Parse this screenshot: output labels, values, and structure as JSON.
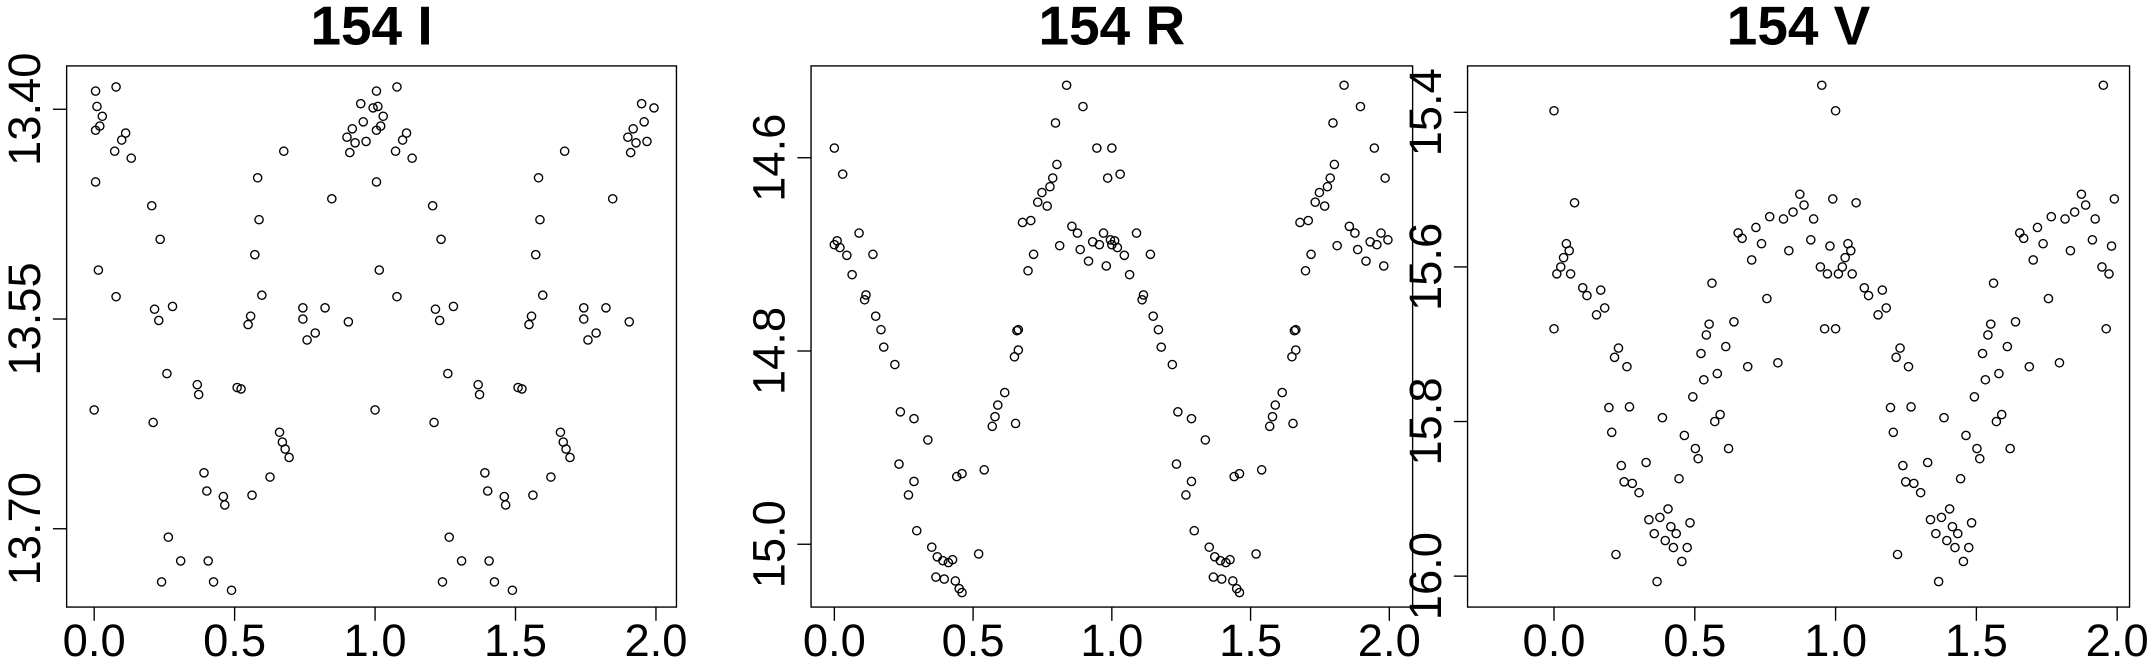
{
  "chart_data": [
    {
      "type": "scatter",
      "title": "154 I",
      "color": "#000000",
      "y_reversed": true,
      "xlim": [
        -0.098,
        2.073
      ],
      "ylim": [
        13.369,
        13.756
      ],
      "xticks": [
        {
          "value": 0,
          "label": "0.0"
        },
        0.5,
        {
          "value": 1,
          "label": "1.0"
        },
        1.5,
        {
          "value": 2,
          "label": "2.0"
        }
      ],
      "yticks": [
        {
          "value": 13.4,
          "label": "13.40"
        },
        13.55,
        {
          "value": 13.7,
          "label": "13.70"
        }
      ],
      "x": [
        0.005,
        0.01,
        0.005,
        0.02,
        0.029,
        0.005,
        0.015,
        0,
        0.078,
        0.073,
        0.098,
        0.112,
        0.132,
        0.078,
        0.205,
        0.215,
        0.23,
        0.235,
        0.279,
        0.259,
        0.21,
        0.264,
        0.24,
        0.308,
        0.367,
        0.372,
        0.391,
        0.401,
        0.406,
        0.425,
        0.46,
        0.465,
        0.489,
        0.509,
        0.523,
        0.548,
        0.557,
        0.562,
        0.572,
        0.582,
        0.587,
        0.597,
        0.626,
        0.66,
        0.67,
        0.68,
        0.694,
        0.675,
        0.743,
        0.743,
        0.758,
        0.787,
        0.822,
        0.846,
        0.905,
        0.9,
        0.91,
        0.919,
        0.929,
        0.949,
        0.958,
        0.968,
        0.993,
        1.005,
        1.01,
        1.005,
        1.02,
        1.029,
        1.005,
        1.015,
        1,
        1.078,
        1.073,
        1.098,
        1.112,
        1.132,
        1.078,
        1.205,
        1.215,
        1.23,
        1.235,
        1.279,
        1.259,
        1.21,
        1.264,
        1.24,
        1.308,
        1.367,
        1.372,
        1.391,
        1.401,
        1.406,
        1.425,
        1.46,
        1.465,
        1.489,
        1.509,
        1.523,
        1.548,
        1.557,
        1.562,
        1.572,
        1.582,
        1.587,
        1.597,
        1.626,
        1.66,
        1.67,
        1.68,
        1.694,
        1.675,
        1.743,
        1.743,
        1.758,
        1.787,
        1.822,
        1.846,
        1.905,
        1.9,
        1.91,
        1.919,
        1.929,
        1.949,
        1.958,
        1.968,
        1.993
      ],
      "y": [
        13.387,
        13.398,
        13.415,
        13.412,
        13.405,
        13.452,
        13.515,
        13.615,
        13.384,
        13.43,
        13.422,
        13.417,
        13.435,
        13.534,
        13.469,
        13.543,
        13.551,
        13.493,
        13.541,
        13.589,
        13.624,
        13.706,
        13.738,
        13.723,
        13.597,
        13.604,
        13.66,
        13.673,
        13.723,
        13.738,
        13.677,
        13.683,
        13.744,
        13.599,
        13.6,
        13.554,
        13.548,
        13.676,
        13.504,
        13.449,
        13.479,
        13.533,
        13.663,
        13.631,
        13.638,
        13.643,
        13.649,
        13.43,
        13.542,
        13.55,
        13.565,
        13.56,
        13.542,
        13.464,
        13.552,
        13.42,
        13.431,
        13.414,
        13.424,
        13.396,
        13.409,
        13.423,
        13.399,
        13.387,
        13.398,
        13.415,
        13.412,
        13.405,
        13.452,
        13.515,
        13.615,
        13.384,
        13.43,
        13.422,
        13.417,
        13.435,
        13.534,
        13.469,
        13.543,
        13.551,
        13.493,
        13.541,
        13.589,
        13.624,
        13.706,
        13.738,
        13.723,
        13.597,
        13.604,
        13.66,
        13.673,
        13.723,
        13.738,
        13.677,
        13.683,
        13.744,
        13.599,
        13.6,
        13.554,
        13.548,
        13.676,
        13.504,
        13.449,
        13.479,
        13.533,
        13.663,
        13.631,
        13.638,
        13.643,
        13.649,
        13.43,
        13.542,
        13.55,
        13.565,
        13.56,
        13.542,
        13.464,
        13.552,
        13.42,
        13.431,
        13.414,
        13.424,
        13.396,
        13.409,
        13.423,
        13.399
      ]
    },
    {
      "type": "scatter",
      "title": "154 R",
      "color": "#000000",
      "y_reversed": true,
      "xlim": [
        -0.084,
        2.084
      ],
      "ylim": [
        14.505,
        15.065
      ],
      "xticks": [
        {
          "value": 0,
          "label": "0.0"
        },
        0.5,
        {
          "value": 1,
          "label": "1.0"
        },
        1.5,
        {
          "value": 2,
          "label": "2.0"
        }
      ],
      "yticks": [
        14.6,
        14.8,
        {
          "value": 15,
          "label": "15.0"
        }
      ],
      "x": [
        0,
        0,
        0.01,
        0.02,
        0.03,
        0.045,
        0.064,
        0.089,
        0.109,
        0.114,
        0.139,
        0.149,
        0.168,
        0.178,
        0.218,
        0.238,
        0.233,
        0.287,
        0.267,
        0.287,
        0.297,
        0.337,
        0.351,
        0.366,
        0.371,
        0.391,
        0.396,
        0.411,
        0.426,
        0.436,
        0.45,
        0.46,
        0.441,
        0.46,
        0.52,
        0.54,
        0.569,
        0.579,
        0.589,
        0.614,
        0.649,
        0.653,
        0.663,
        0.658,
        0.663,
        0.678,
        0.698,
        0.708,
        0.718,
        0.733,
        0.748,
        0.767,
        0.777,
        0.787,
        0.797,
        0.802,
        0.812,
        0.837,
        0.856,
        0.876,
        0.896,
        0.886,
        0.916,
        0.931,
        0.946,
        0.955,
        0.97,
        0.985,
        0.98,
        0.995,
        1,
        1,
        1.01,
        1.02,
        1.03,
        1.045,
        1.064,
        1.089,
        1.109,
        1.114,
        1.139,
        1.149,
        1.168,
        1.178,
        1.218,
        1.238,
        1.233,
        1.287,
        1.267,
        1.287,
        1.297,
        1.337,
        1.351,
        1.366,
        1.371,
        1.391,
        1.396,
        1.411,
        1.426,
        1.436,
        1.45,
        1.46,
        1.441,
        1.46,
        1.52,
        1.54,
        1.569,
        1.579,
        1.589,
        1.614,
        1.649,
        1.653,
        1.663,
        1.658,
        1.663,
        1.678,
        1.698,
        1.708,
        1.718,
        1.733,
        1.748,
        1.767,
        1.777,
        1.787,
        1.797,
        1.802,
        1.812,
        1.837,
        1.856,
        1.876,
        1.896,
        1.886,
        1.916,
        1.931,
        1.946,
        1.955,
        1.97,
        1.985,
        1.98,
        1.995
      ],
      "y": [
        14.59,
        14.69,
        14.686,
        14.693,
        14.617,
        14.701,
        14.721,
        14.678,
        14.747,
        14.742,
        14.7,
        14.764,
        14.778,
        14.796,
        14.814,
        14.863,
        14.917,
        14.87,
        14.949,
        14.935,
        14.986,
        14.892,
        15.003,
        15.034,
        15.013,
        15.017,
        15.036,
        15.019,
        15.016,
        15.038,
        15.046,
        15.05,
        14.93,
        14.927,
        15.01,
        14.923,
        14.878,
        14.868,
        14.856,
        14.843,
        14.806,
        14.875,
        14.799,
        14.779,
        14.778,
        14.667,
        14.717,
        14.665,
        14.7,
        14.646,
        14.636,
        14.65,
        14.63,
        14.621,
        14.564,
        14.607,
        14.691,
        14.525,
        14.671,
        14.678,
        14.547,
        14.695,
        14.707,
        14.687,
        14.59,
        14.69,
        14.678,
        14.621,
        14.712,
        14.685,
        14.59,
        14.69,
        14.686,
        14.693,
        14.617,
        14.701,
        14.721,
        14.678,
        14.747,
        14.742,
        14.7,
        14.764,
        14.778,
        14.796,
        14.814,
        14.863,
        14.917,
        14.87,
        14.949,
        14.935,
        14.986,
        14.892,
        15.003,
        15.034,
        15.013,
        15.017,
        15.036,
        15.019,
        15.016,
        15.038,
        15.046,
        15.05,
        14.93,
        14.927,
        15.01,
        14.923,
        14.878,
        14.868,
        14.856,
        14.843,
        14.806,
        14.875,
        14.799,
        14.779,
        14.778,
        14.667,
        14.717,
        14.665,
        14.7,
        14.646,
        14.636,
        14.65,
        14.63,
        14.621,
        14.564,
        14.607,
        14.691,
        14.525,
        14.671,
        14.678,
        14.547,
        14.695,
        14.707,
        14.687,
        14.59,
        14.69,
        14.678,
        14.621,
        14.712,
        14.685
      ]
    },
    {
      "type": "scatter",
      "title": "154 V",
      "color": "#000000",
      "y_reversed": true,
      "xlim": [
        -0.307,
        2.044
      ],
      "ylim": [
        15.34,
        16.04
      ],
      "xticks": [
        {
          "value": 0,
          "label": "0.0"
        },
        0.5,
        {
          "value": 1,
          "label": "1.0"
        },
        1.5,
        {
          "value": 2,
          "label": "2.0"
        }
      ],
      "yticks": [
        15.4,
        15.6,
        15.8,
        {
          "value": 16,
          "label": "16.0"
        }
      ],
      "x": [
        0,
        0,
        0.01,
        0.024,
        0.034,
        0.044,
        0.054,
        0.059,
        0.073,
        0.102,
        0.117,
        0.151,
        0.166,
        0.18,
        0.195,
        0.205,
        0.215,
        0.22,
        0.229,
        0.239,
        0.249,
        0.259,
        0.268,
        0.278,
        0.302,
        0.327,
        0.337,
        0.356,
        0.366,
        0.376,
        0.385,
        0.395,
        0.405,
        0.415,
        0.424,
        0.434,
        0.444,
        0.454,
        0.463,
        0.473,
        0.483,
        0.493,
        0.502,
        0.512,
        0.522,
        0.532,
        0.541,
        0.551,
        0.561,
        0.571,
        0.58,
        0.59,
        0.61,
        0.62,
        0.639,
        0.654,
        0.668,
        0.688,
        0.702,
        0.717,
        0.737,
        0.756,
        0.766,
        0.795,
        0.815,
        0.834,
        0.849,
        0.873,
        0.888,
        0.912,
        0.922,
        0.951,
        0.946,
        0.961,
        0.971,
        0.98,
        0.99,
        1,
        1,
        1.01,
        1.024,
        1.034,
        1.044,
        1.054,
        1.059,
        1.073,
        1.102,
        1.117,
        1.151,
        1.166,
        1.18,
        1.195,
        1.205,
        1.215,
        1.22,
        1.229,
        1.239,
        1.249,
        1.259,
        1.268,
        1.278,
        1.302,
        1.327,
        1.337,
        1.356,
        1.366,
        1.376,
        1.385,
        1.395,
        1.405,
        1.415,
        1.424,
        1.434,
        1.444,
        1.454,
        1.463,
        1.473,
        1.483,
        1.493,
        1.502,
        1.512,
        1.522,
        1.532,
        1.541,
        1.551,
        1.561,
        1.571,
        1.58,
        1.59,
        1.61,
        1.62,
        1.639,
        1.654,
        1.668,
        1.688,
        1.702,
        1.717,
        1.737,
        1.756,
        1.766,
        1.795,
        1.815,
        1.834,
        1.849,
        1.873,
        1.888,
        1.912,
        1.922,
        1.951,
        1.946,
        1.961,
        1.971,
        1.98,
        1.99
      ],
      "y": [
        15.398,
        15.68,
        15.609,
        15.6,
        15.588,
        15.57,
        15.579,
        15.609,
        15.517,
        15.627,
        15.637,
        15.662,
        15.63,
        15.653,
        15.782,
        15.814,
        15.717,
        15.972,
        15.705,
        15.857,
        15.878,
        15.729,
        15.781,
        15.88,
        15.892,
        15.853,
        15.927,
        15.945,
        16.007,
        15.924,
        15.795,
        15.954,
        15.913,
        15.936,
        15.963,
        15.945,
        15.874,
        15.981,
        15.818,
        15.963,
        15.931,
        15.768,
        15.835,
        15.848,
        15.712,
        15.746,
        15.688,
        15.674,
        15.621,
        15.8,
        15.738,
        15.791,
        15.703,
        15.835,
        15.671,
        15.556,
        15.563,
        15.729,
        15.591,
        15.549,
        15.57,
        15.641,
        15.535,
        15.724,
        15.538,
        15.579,
        15.529,
        15.506,
        15.52,
        15.565,
        15.538,
        15.365,
        15.6,
        15.68,
        15.609,
        15.573,
        15.512,
        15.398,
        15.68,
        15.609,
        15.6,
        15.588,
        15.57,
        15.579,
        15.609,
        15.517,
        15.627,
        15.637,
        15.662,
        15.63,
        15.653,
        15.782,
        15.814,
        15.717,
        15.972,
        15.705,
        15.857,
        15.878,
        15.729,
        15.781,
        15.88,
        15.892,
        15.853,
        15.927,
        15.945,
        16.007,
        15.924,
        15.795,
        15.954,
        15.913,
        15.936,
        15.963,
        15.945,
        15.874,
        15.981,
        15.818,
        15.963,
        15.931,
        15.768,
        15.835,
        15.848,
        15.712,
        15.746,
        15.688,
        15.674,
        15.621,
        15.8,
        15.738,
        15.791,
        15.703,
        15.835,
        15.671,
        15.556,
        15.563,
        15.729,
        15.591,
        15.549,
        15.57,
        15.641,
        15.535,
        15.724,
        15.538,
        15.579,
        15.529,
        15.506,
        15.52,
        15.565,
        15.538,
        15.365,
        15.6,
        15.68,
        15.609,
        15.573,
        15.512
      ]
    }
  ]
}
